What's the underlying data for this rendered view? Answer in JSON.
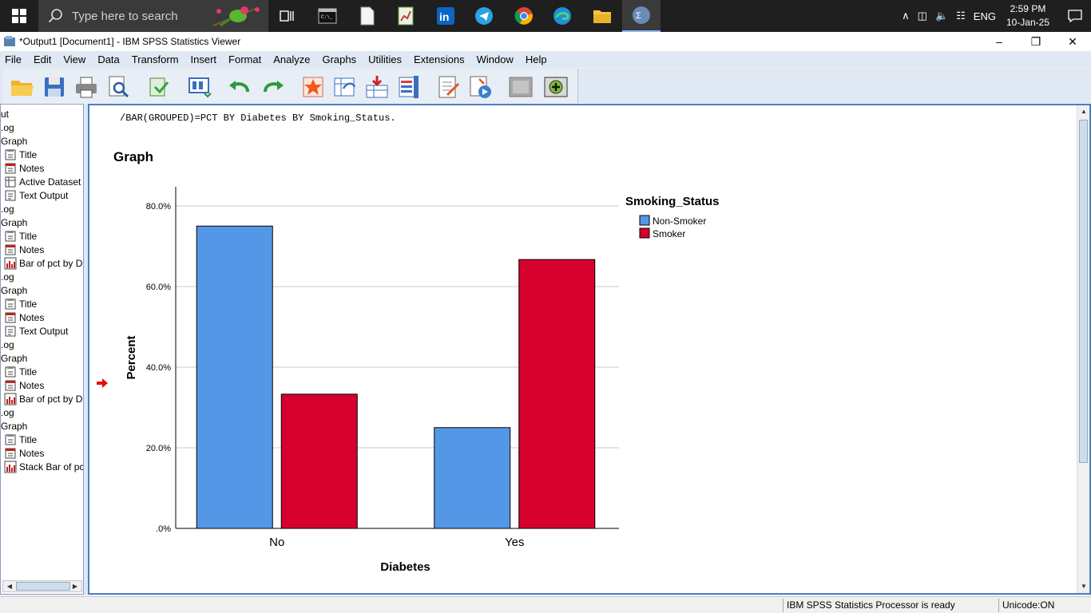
{
  "taskbar": {
    "search_placeholder": "Type here to search",
    "language": "ENG",
    "time": "2:59 PM",
    "date": "10-Jan-25",
    "apps": [
      "task-view",
      "terminal",
      "file",
      "spreadsheet",
      "linkedin",
      "telegram",
      "chrome",
      "edge",
      "file-explorer",
      "spss"
    ]
  },
  "window": {
    "title": "*Output1 [Document1] - IBM SPSS Statistics Viewer",
    "minimize": "–",
    "maximize": "❐",
    "close": "✕"
  },
  "menu": [
    "File",
    "Edit",
    "View",
    "Data",
    "Transform",
    "Insert",
    "Format",
    "Analyze",
    "Graphs",
    "Utilities",
    "Extensions",
    "Window",
    "Help"
  ],
  "outline": {
    "items": [
      {
        "label": "ut",
        "icon": "none"
      },
      {
        "label": ".og",
        "icon": "none"
      },
      {
        "label": "Graph",
        "icon": "none"
      },
      {
        "label": "Title",
        "icon": "title-icon"
      },
      {
        "label": "Notes",
        "icon": "notes-icon"
      },
      {
        "label": "Active Dataset",
        "icon": "dataset-icon"
      },
      {
        "label": "Text Output",
        "icon": "text-icon"
      },
      {
        "label": ".og",
        "icon": "none"
      },
      {
        "label": "Graph",
        "icon": "none"
      },
      {
        "label": "Title",
        "icon": "title-icon"
      },
      {
        "label": "Notes",
        "icon": "notes-icon"
      },
      {
        "label": "Bar of pct by D",
        "icon": "chart-icon"
      },
      {
        "label": ".og",
        "icon": "none"
      },
      {
        "label": "Graph",
        "icon": "none"
      },
      {
        "label": "Title",
        "icon": "title-icon"
      },
      {
        "label": "Notes",
        "icon": "notes-icon"
      },
      {
        "label": "Text Output",
        "icon": "text-icon"
      },
      {
        "label": ".og",
        "icon": "none"
      },
      {
        "label": "Graph",
        "icon": "none"
      },
      {
        "label": "Title",
        "icon": "title-icon"
      },
      {
        "label": "Notes",
        "icon": "notes-icon"
      },
      {
        "label": "Bar of pct by D",
        "icon": "chart-icon"
      },
      {
        "label": ".og",
        "icon": "none"
      },
      {
        "label": "Graph",
        "icon": "none"
      },
      {
        "label": "Title",
        "icon": "title-icon"
      },
      {
        "label": "Notes",
        "icon": "notes-icon"
      },
      {
        "label": "Stack Bar of pc",
        "icon": "chart-icon"
      }
    ]
  },
  "content": {
    "syntax_line": "/BAR(GROUPED)=PCT BY Diabetes BY Smoking_Status.",
    "heading": "Graph"
  },
  "chart_data": {
    "type": "bar",
    "categories": [
      "No",
      "Yes"
    ],
    "series": [
      {
        "name": "Non-Smoker",
        "values": [
          75.0,
          25.0
        ],
        "color": "#5597e7"
      },
      {
        "name": "Smoker",
        "values": [
          33.3,
          66.7
        ],
        "color": "#d6002e"
      }
    ],
    "xlabel": "Diabetes",
    "ylabel": "Percent",
    "ylim": [
      0,
      80
    ],
    "yticks": [
      0,
      20,
      40,
      60,
      80
    ],
    "ytick_labels": [
      ".0%",
      "20.0%",
      "40.0%",
      "60.0%",
      "80.0%"
    ],
    "legend_title": "Smoking_Status",
    "legend_position": "right",
    "grid": true
  },
  "status": {
    "processor": "IBM SPSS Statistics Processor is ready",
    "unicode": "Unicode:ON"
  }
}
